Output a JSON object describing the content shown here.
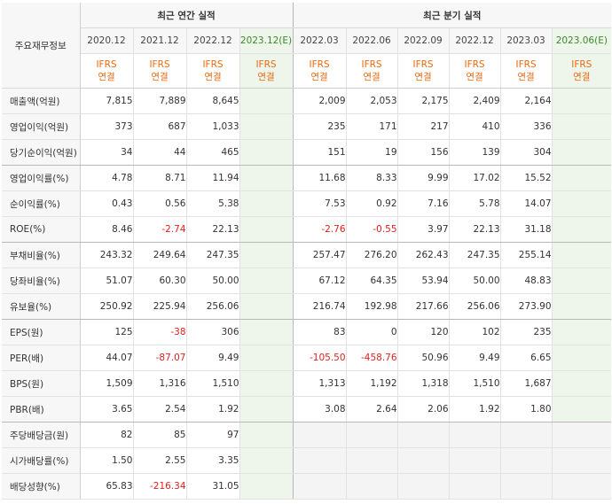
{
  "header": {
    "label": "주요재무정보",
    "annual_title": "최근 연간 실적",
    "quarterly_title": "최근 분기 실적",
    "annual_periods": [
      "2020.12",
      "2021.12",
      "2022.12",
      "2023.12(E)"
    ],
    "quarterly_periods": [
      "2022.03",
      "2022.06",
      "2022.09",
      "2022.12",
      "2023.03",
      "2023.06(E)"
    ],
    "ifrs_top": "IFRS",
    "ifrs_bottom": "연결"
  },
  "rows": [
    {
      "label": "매출액(억원)",
      "annual": [
        "7,815",
        "7,889",
        "8,645",
        ""
      ],
      "quarterly": [
        "2,009",
        "2,053",
        "2,175",
        "2,409",
        "2,164",
        ""
      ]
    },
    {
      "label": "영업이익(억원)",
      "annual": [
        "373",
        "687",
        "1,033",
        ""
      ],
      "quarterly": [
        "235",
        "171",
        "217",
        "410",
        "336",
        ""
      ]
    },
    {
      "label": "당기순이익(억원)",
      "annual": [
        "34",
        "44",
        "465",
        ""
      ],
      "quarterly": [
        "151",
        "19",
        "156",
        "139",
        "304",
        ""
      ]
    },
    {
      "label": "영업이익률(%)",
      "annual": [
        "4.78",
        "8.71",
        "11.94",
        ""
      ],
      "quarterly": [
        "11.68",
        "8.33",
        "9.99",
        "17.02",
        "15.52",
        ""
      ]
    },
    {
      "label": "순이익률(%)",
      "annual": [
        "0.43",
        "0.56",
        "5.38",
        ""
      ],
      "quarterly": [
        "7.53",
        "0.92",
        "7.16",
        "5.78",
        "14.07",
        ""
      ]
    },
    {
      "label": "ROE(%)",
      "annual": [
        "8.46",
        "-2.74",
        "22.13",
        ""
      ],
      "quarterly": [
        "-2.76",
        "-0.55",
        "3.97",
        "22.13",
        "31.18",
        ""
      ]
    },
    {
      "label": "부채비율(%)",
      "annual": [
        "243.32",
        "249.64",
        "247.35",
        ""
      ],
      "quarterly": [
        "257.47",
        "276.20",
        "262.43",
        "247.35",
        "255.14",
        ""
      ]
    },
    {
      "label": "당좌비율(%)",
      "annual": [
        "51.07",
        "60.30",
        "50.00",
        ""
      ],
      "quarterly": [
        "67.12",
        "64.35",
        "53.94",
        "50.00",
        "48.83",
        ""
      ]
    },
    {
      "label": "유보율(%)",
      "annual": [
        "250.92",
        "225.94",
        "256.06",
        ""
      ],
      "quarterly": [
        "216.74",
        "192.98",
        "217.66",
        "256.06",
        "273.90",
        ""
      ]
    },
    {
      "label": "EPS(원)",
      "annual": [
        "125",
        "-38",
        "306",
        ""
      ],
      "quarterly": [
        "83",
        "0",
        "120",
        "102",
        "235",
        ""
      ]
    },
    {
      "label": "PER(배)",
      "annual": [
        "44.07",
        "-87.07",
        "9.49",
        ""
      ],
      "quarterly": [
        "-105.50",
        "-458.76",
        "50.96",
        "9.49",
        "6.65",
        ""
      ]
    },
    {
      "label": "BPS(원)",
      "annual": [
        "1,509",
        "1,316",
        "1,510",
        ""
      ],
      "quarterly": [
        "1,313",
        "1,192",
        "1,318",
        "1,510",
        "1,687",
        ""
      ]
    },
    {
      "label": "PBR(배)",
      "annual": [
        "3.65",
        "2.54",
        "1.92",
        ""
      ],
      "quarterly": [
        "3.08",
        "2.64",
        "2.06",
        "1.92",
        "1.80",
        ""
      ]
    },
    {
      "label": "주당배당금(원)",
      "annual": [
        "82",
        "85",
        "97",
        ""
      ],
      "quarterly": [
        "",
        "",
        "",
        "",
        "",
        ""
      ]
    },
    {
      "label": "시가배당률(%)",
      "annual": [
        "1.50",
        "2.55",
        "3.35",
        ""
      ],
      "quarterly": [
        "",
        "",
        "",
        "",
        "",
        ""
      ]
    },
    {
      "label": "배당성향(%)",
      "annual": [
        "65.83",
        "-216.34",
        "31.05",
        ""
      ],
      "quarterly": [
        "",
        "",
        "",
        "",
        "",
        ""
      ]
    }
  ],
  "colors": {
    "negative": "#e02020",
    "ifrs": "#e86a12",
    "estimate_bg": "#eef5ea",
    "estimate_label": "#3a8a2a"
  }
}
